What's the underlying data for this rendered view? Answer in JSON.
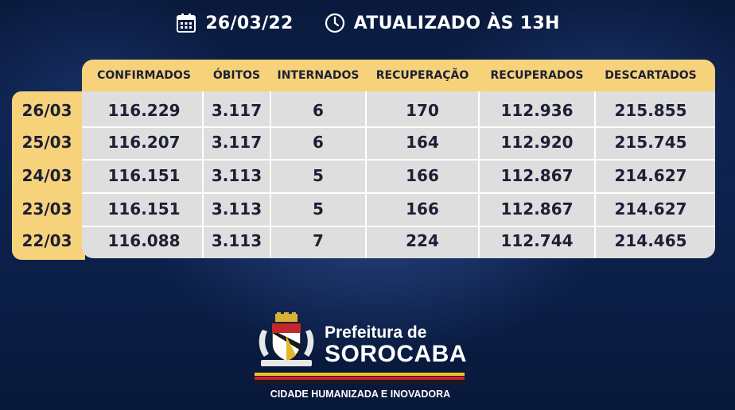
{
  "header": {
    "date": "26/03/22",
    "updated": "ATUALIZADO ÀS 13H",
    "calendar_icon": "calendar-icon",
    "clock_icon": "clock-icon"
  },
  "table": {
    "columns": [
      "CONFIRMADOS",
      "ÓBITOS",
      "INTERNADOS",
      "RECUPERAÇÃO",
      "RECUPERADOS",
      "DESCARTADOS"
    ],
    "rows": [
      {
        "date": "26/03",
        "values": [
          "116.229",
          "3.117",
          "6",
          "170",
          "112.936",
          "215.855"
        ]
      },
      {
        "date": "25/03",
        "values": [
          "116.207",
          "3.117",
          "6",
          "164",
          "112.920",
          "215.745"
        ]
      },
      {
        "date": "24/03",
        "values": [
          "116.151",
          "3.113",
          "5",
          "166",
          "112.867",
          "214.627"
        ]
      },
      {
        "date": "23/03",
        "values": [
          "116.151",
          "3.113",
          "5",
          "166",
          "112.867",
          "214.627"
        ]
      },
      {
        "date": "22/03",
        "values": [
          "116.088",
          "3.113",
          "7",
          "224",
          "112.744",
          "214.465"
        ]
      }
    ]
  },
  "logo": {
    "line1": "Prefeitura de",
    "line2": "SOROCABA",
    "tagline": "CIDADE HUMANIZADA E INOVADORA",
    "stripe_colors": [
      "#e9c52a",
      "#d2232a",
      "#1a1a1a"
    ]
  },
  "colors": {
    "accent": "#f6d27a",
    "cell_bg": "#dedede",
    "text_dark": "#1c2035",
    "background": "#0d2350"
  }
}
